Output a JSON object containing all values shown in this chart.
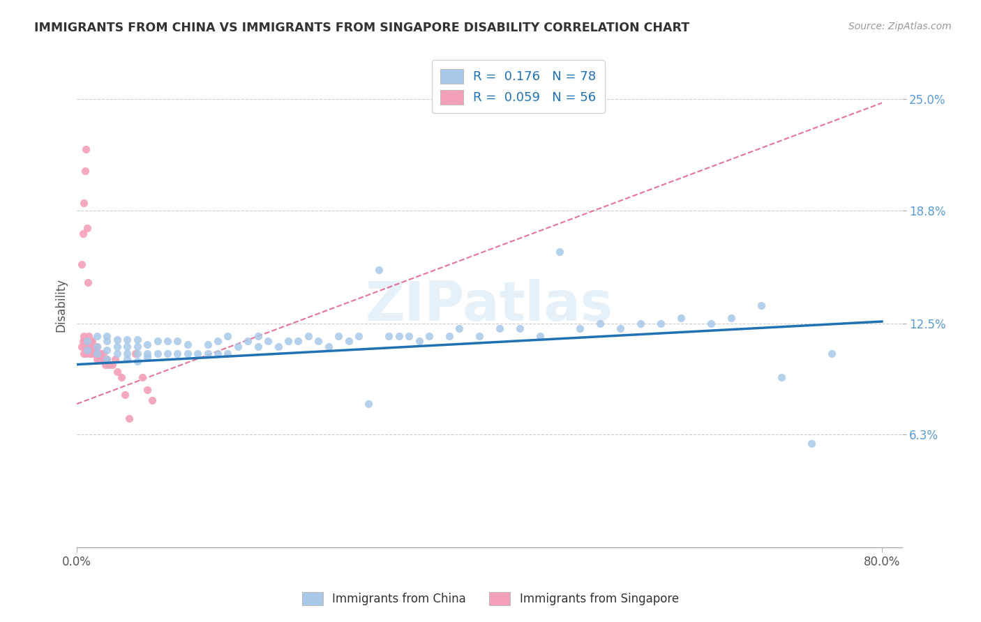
{
  "title": "IMMIGRANTS FROM CHINA VS IMMIGRANTS FROM SINGAPORE DISABILITY CORRELATION CHART",
  "source": "Source: ZipAtlas.com",
  "ylabel": "Disability",
  "watermark": "ZIPatlas",
  "legend1_label": "Immigrants from China",
  "legend2_label": "Immigrants from Singapore",
  "R1": 0.176,
  "N1": 78,
  "R2": 0.059,
  "N2": 56,
  "yticks": [
    0.063,
    0.125,
    0.188,
    0.25
  ],
  "ytick_labels": [
    "6.3%",
    "12.5%",
    "18.8%",
    "25.0%"
  ],
  "ymin": 0.0,
  "ymax": 0.27,
  "xmin": 0.0,
  "xmax": 0.82,
  "color_china": "#a8c8e8",
  "color_singapore": "#f4a0b8",
  "trendline_china_color": "#2171b5",
  "trendline_singapore_color": "#e05080",
  "background_color": "#ffffff",
  "china_x": [
    0.01,
    0.01,
    0.02,
    0.02,
    0.02,
    0.03,
    0.03,
    0.03,
    0.03,
    0.04,
    0.04,
    0.04,
    0.05,
    0.05,
    0.05,
    0.05,
    0.06,
    0.06,
    0.06,
    0.06,
    0.07,
    0.07,
    0.07,
    0.08,
    0.08,
    0.09,
    0.09,
    0.1,
    0.1,
    0.11,
    0.11,
    0.12,
    0.13,
    0.13,
    0.14,
    0.14,
    0.15,
    0.15,
    0.16,
    0.17,
    0.18,
    0.18,
    0.19,
    0.2,
    0.21,
    0.22,
    0.23,
    0.24,
    0.25,
    0.26,
    0.27,
    0.28,
    0.29,
    0.3,
    0.31,
    0.32,
    0.33,
    0.34,
    0.35,
    0.37,
    0.38,
    0.4,
    0.42,
    0.44,
    0.46,
    0.48,
    0.5,
    0.52,
    0.54,
    0.56,
    0.58,
    0.6,
    0.63,
    0.65,
    0.68,
    0.7,
    0.73,
    0.75
  ],
  "china_y": [
    0.11,
    0.115,
    0.108,
    0.112,
    0.118,
    0.105,
    0.11,
    0.115,
    0.118,
    0.108,
    0.112,
    0.116,
    0.105,
    0.108,
    0.112,
    0.116,
    0.104,
    0.108,
    0.112,
    0.116,
    0.106,
    0.108,
    0.113,
    0.108,
    0.115,
    0.108,
    0.115,
    0.108,
    0.115,
    0.108,
    0.113,
    0.108,
    0.108,
    0.113,
    0.108,
    0.115,
    0.108,
    0.118,
    0.112,
    0.115,
    0.112,
    0.118,
    0.115,
    0.112,
    0.115,
    0.115,
    0.118,
    0.115,
    0.112,
    0.118,
    0.115,
    0.118,
    0.08,
    0.155,
    0.118,
    0.118,
    0.118,
    0.115,
    0.118,
    0.118,
    0.122,
    0.118,
    0.122,
    0.122,
    0.118,
    0.165,
    0.122,
    0.125,
    0.122,
    0.125,
    0.125,
    0.128,
    0.125,
    0.128,
    0.135,
    0.095,
    0.058,
    0.108
  ],
  "singapore_x": [
    0.005,
    0.006,
    0.007,
    0.007,
    0.008,
    0.008,
    0.009,
    0.01,
    0.01,
    0.011,
    0.011,
    0.012,
    0.012,
    0.013,
    0.013,
    0.013,
    0.014,
    0.014,
    0.015,
    0.015,
    0.015,
    0.016,
    0.016,
    0.017,
    0.017,
    0.018,
    0.018,
    0.019,
    0.02,
    0.02,
    0.021,
    0.022,
    0.023,
    0.024,
    0.025,
    0.026,
    0.028,
    0.03,
    0.032,
    0.035,
    0.038,
    0.04,
    0.044,
    0.048,
    0.052,
    0.058,
    0.065,
    0.07,
    0.075,
    0.005,
    0.006,
    0.007,
    0.008,
    0.009,
    0.01,
    0.011
  ],
  "singapore_y": [
    0.112,
    0.115,
    0.118,
    0.108,
    0.115,
    0.112,
    0.108,
    0.115,
    0.112,
    0.112,
    0.115,
    0.112,
    0.118,
    0.115,
    0.112,
    0.108,
    0.115,
    0.108,
    0.112,
    0.108,
    0.115,
    0.112,
    0.108,
    0.112,
    0.108,
    0.108,
    0.112,
    0.108,
    0.105,
    0.112,
    0.108,
    0.108,
    0.105,
    0.108,
    0.105,
    0.108,
    0.102,
    0.105,
    0.102,
    0.102,
    0.105,
    0.098,
    0.095,
    0.085,
    0.072,
    0.108,
    0.095,
    0.088,
    0.082,
    0.158,
    0.175,
    0.192,
    0.21,
    0.222,
    0.178,
    0.148
  ],
  "trendline_china_x0": 0.0,
  "trendline_china_x1": 0.8,
  "trendline_china_y0": 0.102,
  "trendline_china_y1": 0.126,
  "trendline_sing_x0": 0.0,
  "trendline_sing_x1": 0.8,
  "trendline_sing_y0": 0.08,
  "trendline_sing_y1": 0.248
}
